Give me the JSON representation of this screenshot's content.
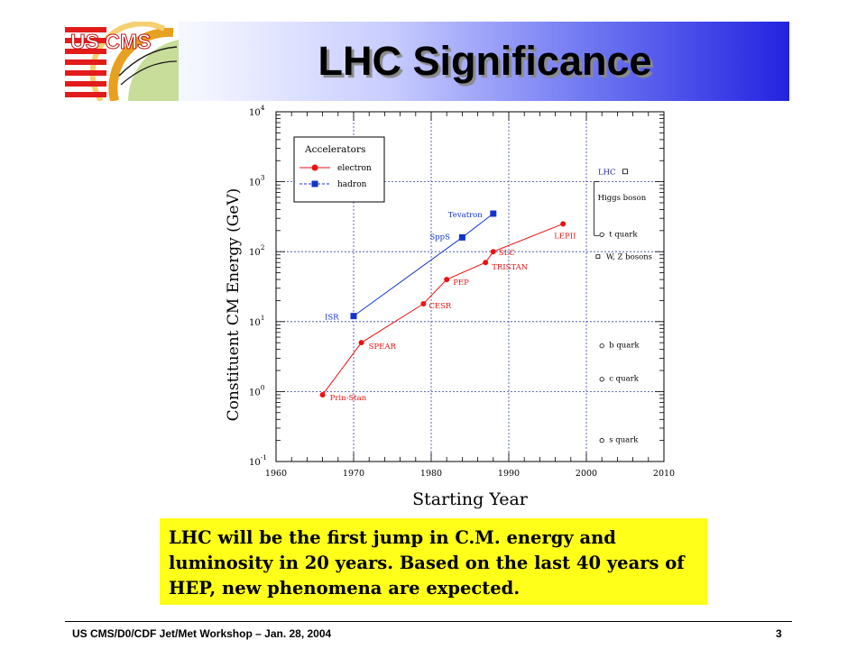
{
  "slide": {
    "title": "LHC Significance",
    "logo_text": "US CMS",
    "footer": "US CMS/D0/CDF  Jet/Met Workshop – Jan. 28, 2004",
    "page_number": "3",
    "note": "LHC will be the first jump in C.M. energy and luminosity in 20 years. Based on the last 40 years of HEP, new phenomena are expected.",
    "colors": {
      "banner_end": "#2323e0",
      "note_bg": "#ffff1a",
      "electron": "#ee1111",
      "hadron": "#1133cc"
    }
  },
  "chart_data": {
    "type": "scatter",
    "title": "",
    "xlabel": "Starting Year",
    "ylabel": "Constituent CM Energy (GeV)",
    "xlim": [
      1960,
      2010
    ],
    "ylim": [
      0.1,
      10000
    ],
    "y_scale": "log",
    "x_ticks": [
      "1960",
      "1970",
      "1980",
      "1990",
      "2000",
      "2010"
    ],
    "y_ticks": [
      {
        "base": "10",
        "exp": "-1"
      },
      {
        "base": "10",
        "exp": "0"
      },
      {
        "base": "10",
        "exp": "1"
      },
      {
        "base": "10",
        "exp": "2"
      },
      {
        "base": "10",
        "exp": "3"
      },
      {
        "base": "10",
        "exp": "4"
      }
    ],
    "grid": "dotted",
    "legend": {
      "title": "Accelerators",
      "placement": "top-left",
      "entries": [
        "electron",
        "hadron"
      ]
    },
    "series": [
      {
        "name": "electron",
        "marker": "circle",
        "line": "solid",
        "points": [
          {
            "label": "Prin-Stan",
            "x": 1966,
            "y": 0.9
          },
          {
            "label": "SPEAR",
            "x": 1971,
            "y": 5
          },
          {
            "label": "CESR",
            "x": 1979,
            "y": 18
          },
          {
            "label": "PEP",
            "x": 1982,
            "y": 40
          },
          {
            "label": "TRISTAN",
            "x": 1987,
            "y": 70
          },
          {
            "label": "SLC",
            "x": 1988,
            "y": 100
          },
          {
            "label": "LEPII",
            "x": 1997,
            "y": 250
          }
        ]
      },
      {
        "name": "hadron",
        "marker": "square",
        "line": "dashed",
        "points": [
          {
            "label": "ISR",
            "x": 1970,
            "y": 12
          },
          {
            "label": "SppS",
            "x": 1984,
            "y": 160
          },
          {
            "label": "Tevatron",
            "x": 1988,
            "y": 350
          }
        ]
      }
    ],
    "annotations": [
      {
        "label": "LHC",
        "x": 2005,
        "y": 1400,
        "marker": "square-open"
      },
      {
        "label": "Higgs boson",
        "x": 2001,
        "y": 600,
        "marker": "bracket"
      },
      {
        "label": "t quark",
        "x": 2002,
        "y": 175,
        "marker": "circle-open"
      },
      {
        "label": "W, Z bosons",
        "x": 2001.5,
        "y": 85,
        "marker": "square-open-small"
      },
      {
        "label": "b quark",
        "x": 2002,
        "y": 4.5,
        "marker": "circle-open"
      },
      {
        "label": "c quark",
        "x": 2002,
        "y": 1.5,
        "marker": "circle-open"
      },
      {
        "label": "s quark",
        "x": 2002,
        "y": 0.2,
        "marker": "circle-open"
      }
    ]
  }
}
